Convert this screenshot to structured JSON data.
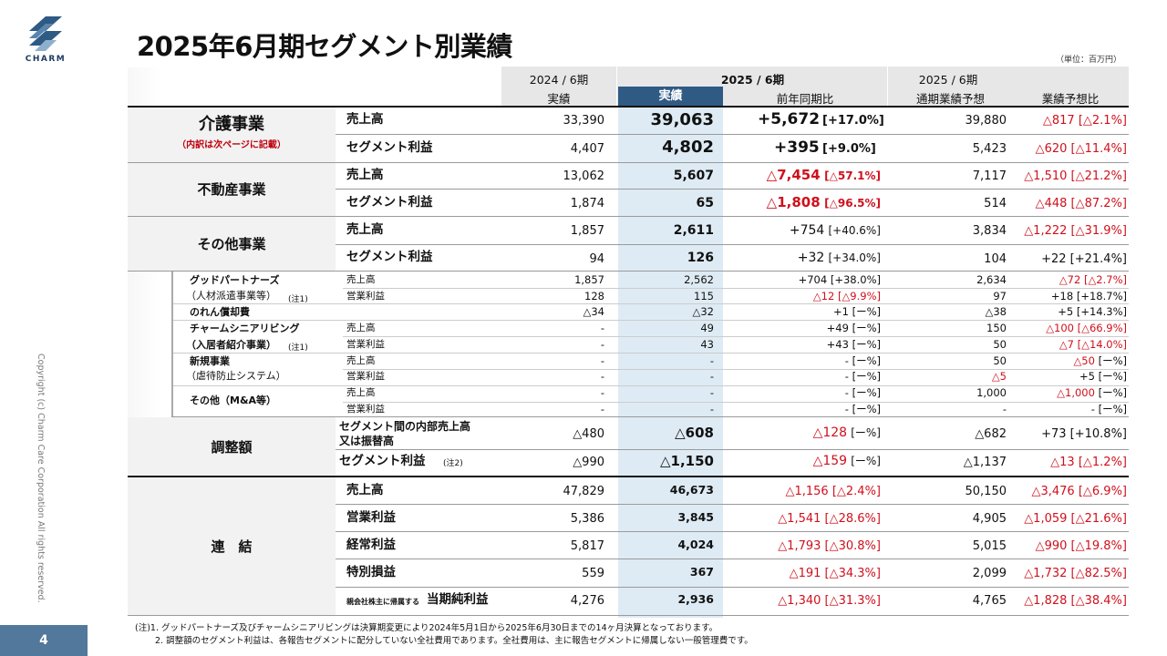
{
  "logo": {
    "text": "CHARM"
  },
  "title": "2025年6月期セグメント別業績",
  "unit": "（単位：百万円）",
  "copyright": "Copyright (c) Charm Care Corporation All rights reserved.",
  "page_number": "4",
  "header": {
    "group1": "2024 / 6期",
    "group1_sub": "実績",
    "group2": "2025 / 6期",
    "group2_sub1": "実績",
    "group2_sub2": "前年同期比",
    "group3": "2025 / 6期",
    "group3_sub1": "通期業績予想",
    "group3_sub2": "業績予想比"
  },
  "segments": [
    {
      "name": "介護事業",
      "subtitle": "（内訳は次ページに記載）",
      "rows": [
        {
          "label": "売上高",
          "prev": "33,390",
          "act": "39,063",
          "yoy": "+5,672",
          "yoy_pct": "[+17.0%]",
          "fc": "39,880",
          "vs": "△817",
          "vs_pct": "[△2.1%]"
        },
        {
          "label": "セグメント利益",
          "prev": "4,407",
          "act": "4,802",
          "yoy": "+395",
          "yoy_pct": "[+9.0%]",
          "fc": "5,423",
          "vs": "△620",
          "vs_pct": "[△11.4%]"
        }
      ]
    },
    {
      "name": "不動産事業",
      "rows": [
        {
          "label": "売上高",
          "prev": "13,062",
          "act": "5,607",
          "yoy": "△7,454",
          "yoy_pct": "[△57.1%]",
          "fc": "7,117",
          "vs": "△1,510",
          "vs_pct": "[△21.2%]"
        },
        {
          "label": "セグメント利益",
          "prev": "1,874",
          "act": "65",
          "yoy": "△1,808",
          "yoy_pct": "[△96.5%]",
          "fc": "514",
          "vs": "△448",
          "vs_pct": "[△87.2%]"
        }
      ]
    },
    {
      "name": "その他事業",
      "rows": [
        {
          "label": "売上高",
          "prev": "1,857",
          "act": "2,611",
          "yoy": "+754",
          "yoy_pct": "[+40.6%]",
          "fc": "3,834",
          "vs": "△1,222",
          "vs_pct": "[△31.9%]"
        },
        {
          "label": "セグメント利益",
          "prev": "94",
          "act": "126",
          "yoy": "+32",
          "yoy_pct": "[+34.0%]",
          "fc": "104",
          "vs": "+22",
          "vs_pct": "[+21.4%]"
        }
      ]
    }
  ],
  "subitems": {
    "gp_name1": "グッドパートナーズ",
    "gp_name2": "（人材派遣事業等）",
    "gp_note": "(注1)",
    "gp_r1": {
      "label": "売上高",
      "prev": "1,857",
      "act": "2,562",
      "yoy": "+704",
      "yoy_pct": "[+38.0%]",
      "fc": "2,634",
      "vs": "△72",
      "vs_pct": "[△2.7%]"
    },
    "gp_r2": {
      "label": "営業利益",
      "prev": "128",
      "act": "115",
      "yoy": "△12",
      "yoy_pct": "[△9.9%]",
      "fc": "97",
      "vs": "+18",
      "vs_pct": "[+18.7%]"
    },
    "nore_name": "のれん償却費",
    "nore": {
      "prev": "△34",
      "act": "△32",
      "yoy": "+1",
      "yoy_pct": "[ー%]",
      "fc": "△38",
      "vs": "+5",
      "vs_pct": "[+14.3%]"
    },
    "cs_name1": "チャームシニアリビング",
    "cs_name2": "（入居者紹介事業）",
    "cs_note": "(注1)",
    "cs_r1": {
      "label": "売上高",
      "prev": "-",
      "act": "49",
      "yoy": "+49",
      "yoy_pct": "[ー%]",
      "fc": "150",
      "vs": "△100",
      "vs_pct": "[△66.9%]"
    },
    "cs_r2": {
      "label": "営業利益",
      "prev": "-",
      "act": "43",
      "yoy": "+43",
      "yoy_pct": "[ー%]",
      "fc": "50",
      "vs": "△7",
      "vs_pct": "[△14.0%]"
    },
    "nb_name1": "新規事業",
    "nb_name2": "（虐待防止システム）",
    "nb_r1": {
      "label": "売上高",
      "prev": "-",
      "act": "-",
      "yoy": "-",
      "yoy_pct": "[ー%]",
      "fc": "50",
      "vs": "△50",
      "vs_pct": "[ー%]"
    },
    "nb_r2": {
      "label": "営業利益",
      "prev": "-",
      "act": "-",
      "yoy": "-",
      "yoy_pct": "[ー%]",
      "fc": "△5",
      "vs": "+5",
      "vs_pct": "[ー%]"
    },
    "ot_name": "その他（M&A等）",
    "ot_r1": {
      "label": "売上高",
      "prev": "-",
      "act": "-",
      "yoy": "-",
      "yoy_pct": "[ー%]",
      "fc": "1,000",
      "vs": "△1,000",
      "vs_pct": "[ー%]"
    },
    "ot_r2": {
      "label": "営業利益",
      "prev": "-",
      "act": "-",
      "yoy": "-",
      "yoy_pct": "[ー%]",
      "fc": "-",
      "vs": "-",
      "vs_pct": "[ー%]"
    }
  },
  "adjust": {
    "name": "調整額",
    "r1": {
      "label1": "セグメント間の内部売上高",
      "label2": "又は振替高",
      "prev": "△480",
      "act": "△608",
      "yoy": "△128",
      "yoy_pct": "[ー%]",
      "fc": "△682",
      "vs": "+73",
      "vs_pct": "[+10.8%]"
    },
    "r2": {
      "label": "セグメント利益",
      "note": "(注2)",
      "prev": "△990",
      "act": "△1,150",
      "yoy": "△159",
      "yoy_pct": "[ー%]",
      "fc": "△1,137",
      "vs": "△13",
      "vs_pct": "[△1.2%]"
    }
  },
  "consolidated": {
    "name": "連　結",
    "rows": [
      {
        "label": "売上高",
        "prev": "47,829",
        "act": "46,673",
        "yoy": "△1,156",
        "yoy_pct": "[△2.4%]",
        "fc": "50,150",
        "vs": "△3,476",
        "vs_pct": "[△6.9%]"
      },
      {
        "label": "営業利益",
        "prev": "5,386",
        "act": "3,845",
        "yoy": "△1,541",
        "yoy_pct": "[△28.6%]",
        "fc": "4,905",
        "vs": "△1,059",
        "vs_pct": "[△21.6%]"
      },
      {
        "label": "経常利益",
        "prev": "5,817",
        "act": "4,024",
        "yoy": "△1,793",
        "yoy_pct": "[△30.8%]",
        "fc": "5,015",
        "vs": "△990",
        "vs_pct": "[△19.8%]"
      },
      {
        "label": "特別損益",
        "prev": "559",
        "act": "367",
        "yoy": "△191",
        "yoy_pct": "[△34.3%]",
        "fc": "2,099",
        "vs": "△1,732",
        "vs_pct": "[△82.5%]"
      },
      {
        "label_prefix": "親会社株主に帰属する",
        "label": "当期純利益",
        "prev": "4,276",
        "act": "2,936",
        "yoy": "△1,340",
        "yoy_pct": "[△31.3%]",
        "fc": "4,765",
        "vs": "△1,828",
        "vs_pct": "[△38.4%]"
      }
    ]
  },
  "notes": {
    "n1": "(注)1. グッドパートナーズ及びチャームシニアリビングは決算期変更により2024年5月1日から2025年6月30日までの14ヶ月決算となっております。",
    "n2": "2. 調整額のセグメント利益は、各報告セグメントに配分していない全社費用であります。全社費用は、主に報告セグメントに帰属しない一般管理費です。"
  }
}
